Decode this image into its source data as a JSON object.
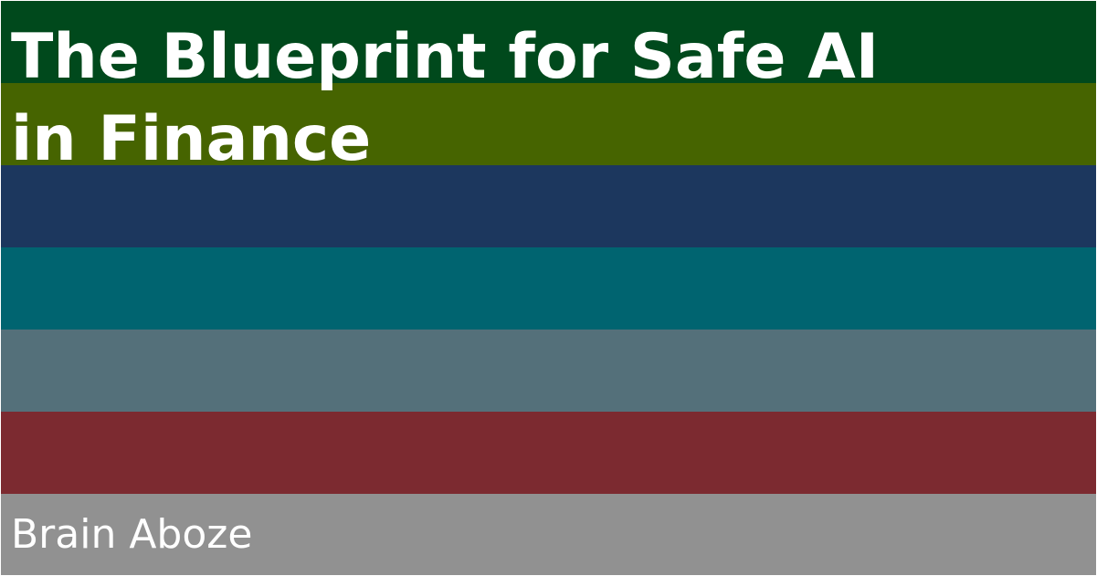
{
  "title_lines": [
    "The Blueprint for Safe AI",
    "in Finance"
  ],
  "author": "Brain Aboze",
  "colors": {
    "stripes": [
      "#00491c",
      "#466400",
      "#1c375e",
      "#006470",
      "#54707a",
      "#7c2a30",
      "#919191"
    ],
    "text": "#ffffff"
  }
}
